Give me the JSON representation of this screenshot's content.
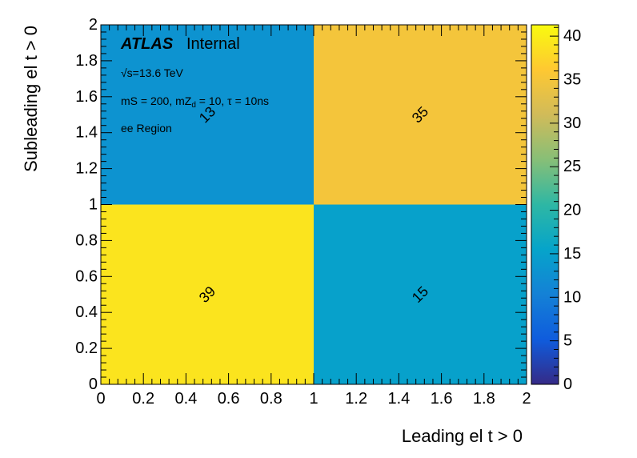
{
  "chart_data": {
    "type": "heatmap",
    "x_edges": [
      0,
      1,
      2
    ],
    "y_edges": [
      0,
      1,
      2
    ],
    "cells": [
      {
        "x": [
          0,
          1
        ],
        "y": [
          0,
          1
        ],
        "value": 39,
        "label": "39"
      },
      {
        "x": [
          1,
          2
        ],
        "y": [
          0,
          1
        ],
        "value": 15,
        "label": "15"
      },
      {
        "x": [
          0,
          1
        ],
        "y": [
          1,
          2
        ],
        "value": 13,
        "label": "13"
      },
      {
        "x": [
          1,
          2
        ],
        "y": [
          1,
          2
        ],
        "value": 35,
        "label": "35"
      }
    ],
    "xlabel": "Leading el t > 0",
    "ylabel": "Subleading el t > 0",
    "xlim": [
      0,
      2
    ],
    "ylim": [
      0,
      2
    ],
    "x_ticks": [
      "0",
      "0.2",
      "0.4",
      "0.6",
      "0.8",
      "1",
      "1.2",
      "1.4",
      "1.6",
      "1.8",
      "2"
    ],
    "y_ticks": [
      "0",
      "0.2",
      "0.4",
      "0.6",
      "0.8",
      "1",
      "1.2",
      "1.4",
      "1.6",
      "1.8",
      "2"
    ],
    "colorbar": {
      "range": [
        0,
        41.3
      ],
      "ticks": [
        "0",
        "5",
        "10",
        "15",
        "20",
        "25",
        "30",
        "35",
        "40"
      ],
      "palette": [
        "#352a87",
        "#0f5cdd",
        "#1481d6",
        "#06a4ca",
        "#2eb7a4",
        "#87bf77",
        "#d1bb59",
        "#fec832",
        "#f9fb0e"
      ]
    },
    "grid": false
  },
  "annotations": {
    "atlas": "ATLAS",
    "internal": "Internal",
    "energy": "√s=13.6 TeV",
    "params_prefix": "mS = 200, mZ",
    "params_sub": "d",
    "params_suffix": " = 10, τ = 10ns",
    "region": "ee Region"
  }
}
